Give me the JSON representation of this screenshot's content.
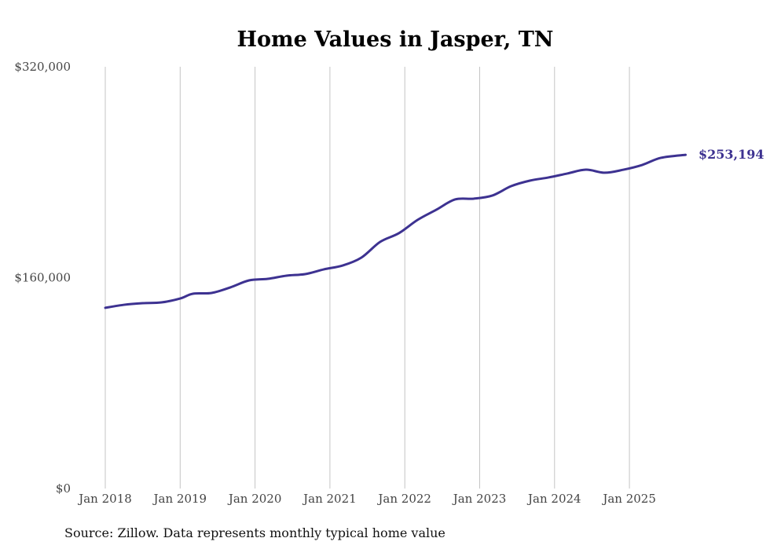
{
  "chart_data": {
    "type": "line",
    "title": "Home Values in Jasper, TN",
    "xlabel": "",
    "ylabel": "",
    "ylim": [
      0,
      320000
    ],
    "xlim": [
      2018.0,
      2025.75
    ],
    "y_ticks": [
      {
        "value": 0,
        "label": "$0"
      },
      {
        "value": 160000,
        "label": "$160,000"
      },
      {
        "value": 320000,
        "label": "$320,000"
      }
    ],
    "x_ticks": [
      {
        "value": 2018,
        "label": "Jan 2018"
      },
      {
        "value": 2019,
        "label": "Jan 2019"
      },
      {
        "value": 2020,
        "label": "Jan 2020"
      },
      {
        "value": 2021,
        "label": "Jan 2021"
      },
      {
        "value": 2022,
        "label": "Jan 2022"
      },
      {
        "value": 2023,
        "label": "Jan 2023"
      },
      {
        "value": 2024,
        "label": "Jan 2024"
      },
      {
        "value": 2025,
        "label": "Jan 2025"
      }
    ],
    "grid": "vertical",
    "series": [
      {
        "name": "Typical home value",
        "color": "#3d3291",
        "x": [
          2018.0,
          2018.25,
          2018.5,
          2018.75,
          2019.0,
          2019.17,
          2019.42,
          2019.67,
          2019.92,
          2020.17,
          2020.42,
          2020.67,
          2020.92,
          2021.17,
          2021.42,
          2021.67,
          2021.92,
          2022.17,
          2022.42,
          2022.67,
          2022.92,
          2023.17,
          2023.42,
          2023.67,
          2023.92,
          2024.17,
          2024.42,
          2024.67,
          2024.92,
          2025.17,
          2025.42,
          2025.75
        ],
        "y": [
          137100,
          139400,
          140600,
          141200,
          144200,
          147800,
          148400,
          152600,
          157900,
          159100,
          161500,
          162700,
          166300,
          169200,
          175200,
          187100,
          193700,
          203800,
          211500,
          219300,
          219900,
          222300,
          229400,
          233600,
          236000,
          239000,
          241900,
          239600,
          241900,
          245500,
          250900,
          253194
        ]
      }
    ],
    "end_label": "$253,194",
    "source": "Source: Zillow. Data represents monthly typical home value"
  }
}
